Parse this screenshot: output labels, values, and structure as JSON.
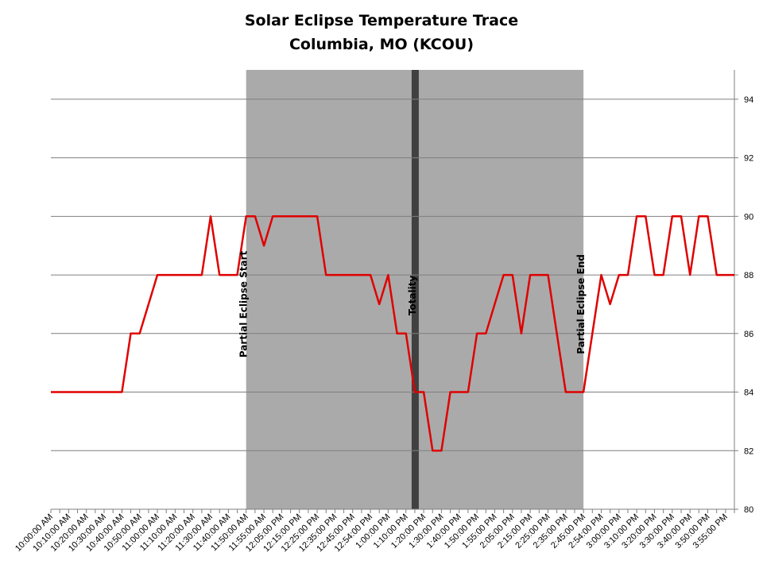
{
  "chart_data": {
    "type": "line",
    "title": "Solar Eclipse Temperature Trace",
    "subtitle": "Columbia, MO (KCOU)",
    "xlabel": "",
    "ylabel": "",
    "ylim": [
      80,
      95
    ],
    "yticks": [
      80,
      82,
      84,
      86,
      88,
      90,
      92,
      94
    ],
    "y_axis_side": "right",
    "grid": "horizontal",
    "categories": [
      "10:00:00 AM",
      "10:05:00 AM",
      "10:10:00 AM",
      "10:15:00 AM",
      "10:20:00 AM",
      "10:25:00 AM",
      "10:30:00 AM",
      "10:35:00 AM",
      "10:40:00 AM",
      "10:45:00 AM",
      "10:50:00 AM",
      "10:55:00 AM",
      "11:00:00 AM",
      "11:05:00 AM",
      "11:10:00 AM",
      "11:15:00 AM",
      "11:20:00 AM",
      "11:25:00 AM",
      "11:30:00 AM",
      "11:35:00 AM",
      "11:40:00 AM",
      "11:45:00 AM",
      "11:50:00 AM",
      "11:54:00 AM",
      "11:55:00 AM",
      "12:00:00 PM",
      "12:05:00 PM",
      "12:10:00 PM",
      "12:15:00 PM",
      "12:20:00 PM",
      "12:25:00 PM",
      "12:30:00 PM",
      "12:35:00 PM",
      "12:40:00 PM",
      "12:45:00 PM",
      "12:50:00 PM",
      "12:54:00 PM",
      "12:55:00 PM",
      "1:00:00 PM",
      "1:05:00 PM",
      "1:10:00 PM",
      "1:15:00 PM",
      "1:20:00 PM",
      "1:25:00 PM",
      "1:30:00 PM",
      "1:35:00 PM",
      "1:40:00 PM",
      "1:45:00 PM",
      "1:50:00 PM",
      "1:54:00 PM",
      "1:55:00 PM",
      "2:00:00 PM",
      "2:05:00 PM",
      "2:10:00 PM",
      "2:15:00 PM",
      "2:20:00 PM",
      "2:25:00 PM",
      "2:30:00 PM",
      "2:35:00 PM",
      "2:40:00 PM",
      "2:45:00 PM",
      "2:50:00 PM",
      "2:54:00 PM",
      "2:55:00 PM",
      "3:00:00 PM",
      "3:05:00 PM",
      "3:10:00 PM",
      "3:15:00 PM",
      "3:20:00 PM",
      "3:25:00 PM",
      "3:30:00 PM",
      "3:35:00 PM",
      "3:40:00 PM",
      "3:45:00 PM",
      "3:50:00 PM",
      "3:54:00 PM",
      "3:55:00 PM",
      "4:00:00 PM"
    ],
    "label_every": 2,
    "series": [
      {
        "name": "",
        "color": "#e00000",
        "values": [
          84,
          84,
          84,
          84,
          84,
          84,
          84,
          84,
          84,
          86,
          86,
          87,
          88,
          88,
          88,
          88,
          88,
          88,
          90,
          88,
          88,
          88,
          90,
          90,
          89,
          90,
          90,
          90,
          90,
          90,
          90,
          88,
          88,
          88,
          88,
          88,
          88,
          87,
          88,
          86,
          86,
          84,
          84,
          82,
          82,
          84,
          84,
          84,
          86,
          86,
          87,
          88,
          88,
          86,
          88,
          88,
          88,
          86,
          84,
          84,
          84,
          86,
          88,
          87,
          88,
          88,
          90,
          90,
          88,
          88,
          90,
          90,
          88,
          90,
          90,
          88,
          88,
          88
        ]
      }
    ],
    "shaded_region": {
      "start_index": 22,
      "end_index": 60,
      "color": "#aaaaaa"
    },
    "annotations": [
      {
        "text": "Partial Eclipse Start",
        "index": 22,
        "y": 87
      },
      {
        "text": "Totality",
        "index": 41,
        "y": 87.3
      },
      {
        "text": "Partial Eclipse End",
        "index": 60,
        "y": 87
      }
    ],
    "totality": {
      "index": 41,
      "color": "#404040"
    }
  }
}
